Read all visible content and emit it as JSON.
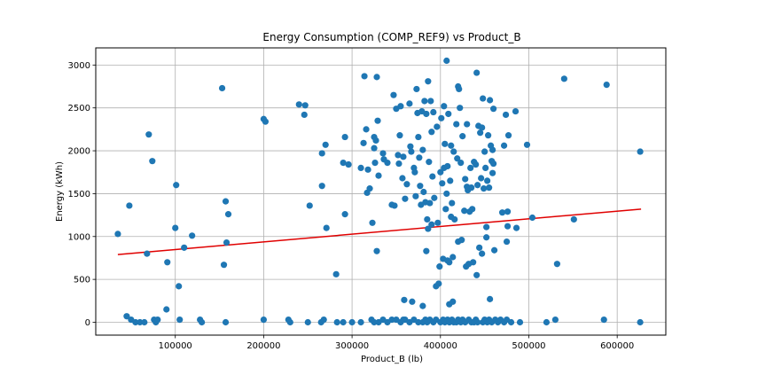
{
  "chart_data": {
    "type": "scatter",
    "title": "Energy Consumption (COMP_REF9) vs Product_B",
    "xlabel": "Product_B (lb)",
    "ylabel": "Energy (kWh)",
    "xlim": [
      10000,
      655000
    ],
    "ylim": [
      -150,
      3200
    ],
    "xticks": [
      100000,
      200000,
      300000,
      400000,
      500000,
      600000
    ],
    "xtick_labels": [
      "100000",
      "200000",
      "300000",
      "400000",
      "500000",
      "600000"
    ],
    "yticks": [
      0,
      500,
      1000,
      1500,
      2000,
      2500,
      3000
    ],
    "ytick_labels": [
      "0",
      "500",
      "1000",
      "1500",
      "2000",
      "2500",
      "3000"
    ],
    "grid": true,
    "point_color": "#1f77b4",
    "trend_color": "#e00000",
    "trendline": {
      "x": [
        35000,
        627000
      ],
      "y": [
        790,
        1320
      ]
    },
    "points": [
      [
        35000,
        1030
      ],
      [
        45000,
        70
      ],
      [
        48000,
        1360
      ],
      [
        50000,
        30
      ],
      [
        55000,
        0
      ],
      [
        60000,
        0
      ],
      [
        65000,
        0
      ],
      [
        68000,
        800
      ],
      [
        70000,
        2190
      ],
      [
        74000,
        1880
      ],
      [
        76000,
        30
      ],
      [
        78000,
        0
      ],
      [
        80000,
        30
      ],
      [
        91000,
        700
      ],
      [
        90000,
        150
      ],
      [
        100000,
        1100
      ],
      [
        101000,
        1600
      ],
      [
        104000,
        420
      ],
      [
        105000,
        30
      ],
      [
        110000,
        870
      ],
      [
        119000,
        1010
      ],
      [
        128000,
        30
      ],
      [
        130000,
        0
      ],
      [
        153000,
        2730
      ],
      [
        155000,
        670
      ],
      [
        157000,
        0
      ],
      [
        157000,
        1410
      ],
      [
        158000,
        930
      ],
      [
        160000,
        1260
      ],
      [
        200000,
        2370
      ],
      [
        202000,
        2340
      ],
      [
        200000,
        30
      ],
      [
        228000,
        30
      ],
      [
        230000,
        0
      ],
      [
        240000,
        2540
      ],
      [
        246000,
        2420
      ],
      [
        247000,
        2530
      ],
      [
        250000,
        0
      ],
      [
        252000,
        1360
      ],
      [
        265000,
        0
      ],
      [
        266000,
        1970
      ],
      [
        266000,
        1590
      ],
      [
        268000,
        30
      ],
      [
        270000,
        2070
      ],
      [
        271000,
        1100
      ],
      [
        282000,
        560
      ],
      [
        283000,
        0
      ],
      [
        290000,
        1860
      ],
      [
        292000,
        1260
      ],
      [
        292000,
        2160
      ],
      [
        296000,
        1840
      ],
      [
        300000,
        0
      ],
      [
        310000,
        1800
      ],
      [
        310000,
        0
      ],
      [
        313000,
        2090
      ],
      [
        314000,
        2870
      ],
      [
        316000,
        2250
      ],
      [
        317000,
        1510
      ],
      [
        318000,
        1780
      ],
      [
        320000,
        1560
      ],
      [
        322000,
        30
      ],
      [
        323000,
        1160
      ],
      [
        325000,
        2160
      ],
      [
        325000,
        2030
      ],
      [
        326000,
        1860
      ],
      [
        327000,
        2120
      ],
      [
        328000,
        830
      ],
      [
        328000,
        2860
      ],
      [
        329000,
        2350
      ],
      [
        330000,
        1710
      ],
      [
        330000,
        0
      ],
      [
        335000,
        1970
      ],
      [
        336000,
        1900
      ],
      [
        340000,
        1860
      ],
      [
        345000,
        1370
      ],
      [
        347000,
        2650
      ],
      [
        348000,
        1360
      ],
      [
        350000,
        2490
      ],
      [
        352000,
        1950
      ],
      [
        353000,
        1850
      ],
      [
        354000,
        2180
      ],
      [
        355000,
        2520
      ],
      [
        357000,
        1680
      ],
      [
        358000,
        1930
      ],
      [
        359000,
        260
      ],
      [
        360000,
        1440
      ],
      [
        362000,
        1610
      ],
      [
        365000,
        2550
      ],
      [
        366000,
        2050
      ],
      [
        367000,
        1990
      ],
      [
        368000,
        240
      ],
      [
        370000,
        1800
      ],
      [
        371000,
        1750
      ],
      [
        372000,
        1470
      ],
      [
        373000,
        2720
      ],
      [
        374000,
        2440
      ],
      [
        375000,
        2160
      ],
      [
        376000,
        1920
      ],
      [
        377000,
        1590
      ],
      [
        378000,
        1370
      ],
      [
        379000,
        2460
      ],
      [
        380000,
        2010
      ],
      [
        380000,
        190
      ],
      [
        381000,
        1520
      ],
      [
        382000,
        2580
      ],
      [
        383000,
        1400
      ],
      [
        384000,
        2430
      ],
      [
        384000,
        830
      ],
      [
        385000,
        1200
      ],
      [
        386000,
        2810
      ],
      [
        386000,
        1090
      ],
      [
        387000,
        1870
      ],
      [
        388000,
        1390
      ],
      [
        389000,
        2580
      ],
      [
        390000,
        2220
      ],
      [
        390000,
        1140
      ],
      [
        391000,
        1700
      ],
      [
        392000,
        2450
      ],
      [
        393000,
        1450
      ],
      [
        395000,
        420
      ],
      [
        396000,
        2280
      ],
      [
        397000,
        1160
      ],
      [
        398000,
        450
      ],
      [
        399000,
        650
      ],
      [
        400000,
        1750
      ],
      [
        401000,
        2380
      ],
      [
        402000,
        1620
      ],
      [
        403000,
        740
      ],
      [
        404000,
        2520
      ],
      [
        404000,
        1800
      ],
      [
        405000,
        2080
      ],
      [
        406000,
        1320
      ],
      [
        407000,
        1500
      ],
      [
        407000,
        3050
      ],
      [
        408000,
        1820
      ],
      [
        408000,
        720
      ],
      [
        409000,
        2430
      ],
      [
        410000,
        700
      ],
      [
        410000,
        210
      ],
      [
        411000,
        1650
      ],
      [
        412000,
        2060
      ],
      [
        412000,
        1230
      ],
      [
        413000,
        1390
      ],
      [
        414000,
        760
      ],
      [
        414000,
        240
      ],
      [
        415000,
        1990
      ],
      [
        416000,
        1200
      ],
      [
        418000,
        2310
      ],
      [
        419000,
        1910
      ],
      [
        420000,
        2750
      ],
      [
        420000,
        940
      ],
      [
        421000,
        2720
      ],
      [
        422000,
        2500
      ],
      [
        423000,
        1860
      ],
      [
        424000,
        960
      ],
      [
        425000,
        2170
      ],
      [
        427000,
        1300
      ],
      [
        428000,
        1670
      ],
      [
        429000,
        650
      ],
      [
        430000,
        1580
      ],
      [
        430000,
        2310
      ],
      [
        431000,
        1540
      ],
      [
        432000,
        680
      ],
      [
        433000,
        1290
      ],
      [
        434000,
        1800
      ],
      [
        435000,
        1570
      ],
      [
        436000,
        1320
      ],
      [
        437000,
        700
      ],
      [
        438000,
        1870
      ],
      [
        440000,
        1840
      ],
      [
        441000,
        2910
      ],
      [
        441000,
        550
      ],
      [
        442000,
        1600
      ],
      [
        443000,
        2290
      ],
      [
        444000,
        870
      ],
      [
        445000,
        2210
      ],
      [
        446000,
        1680
      ],
      [
        447000,
        2270
      ],
      [
        447000,
        800
      ],
      [
        448000,
        2610
      ],
      [
        449000,
        1560
      ],
      [
        450000,
        1990
      ],
      [
        451000,
        1800
      ],
      [
        452000,
        1110
      ],
      [
        452000,
        990
      ],
      [
        453000,
        1650
      ],
      [
        454000,
        2180
      ],
      [
        455000,
        1570
      ],
      [
        456000,
        270
      ],
      [
        456000,
        2590
      ],
      [
        457000,
        2060
      ],
      [
        458000,
        1880
      ],
      [
        459000,
        1740
      ],
      [
        459000,
        2010
      ],
      [
        460000,
        2490
      ],
      [
        460000,
        1850
      ],
      [
        461000,
        840
      ],
      [
        470000,
        1280
      ],
      [
        472000,
        2060
      ],
      [
        474000,
        2420
      ],
      [
        475000,
        940
      ],
      [
        476000,
        1120
      ],
      [
        476000,
        1290
      ],
      [
        477000,
        2180
      ],
      [
        480000,
        0
      ],
      [
        485000,
        2460
      ],
      [
        486000,
        1100
      ],
      [
        498000,
        2070
      ],
      [
        504000,
        1220
      ],
      [
        532000,
        680
      ],
      [
        540000,
        2840
      ],
      [
        551000,
        1200
      ],
      [
        588000,
        2770
      ],
      [
        626000,
        1990
      ],
      [
        626000,
        0
      ],
      [
        340000,
        0
      ],
      [
        345000,
        30
      ],
      [
        355000,
        0
      ],
      [
        360000,
        30
      ],
      [
        365000,
        0
      ],
      [
        370000,
        30
      ],
      [
        375000,
        0
      ],
      [
        380000,
        0
      ],
      [
        383000,
        30
      ],
      [
        385000,
        0
      ],
      [
        388000,
        30
      ],
      [
        392000,
        0
      ],
      [
        395000,
        30
      ],
      [
        400000,
        0
      ],
      [
        403000,
        30
      ],
      [
        405000,
        0
      ],
      [
        408000,
        30
      ],
      [
        410000,
        0
      ],
      [
        413000,
        30
      ],
      [
        415000,
        0
      ],
      [
        418000,
        0
      ],
      [
        420000,
        30
      ],
      [
        423000,
        0
      ],
      [
        425000,
        30
      ],
      [
        428000,
        0
      ],
      [
        432000,
        30
      ],
      [
        435000,
        0
      ],
      [
        438000,
        0
      ],
      [
        440000,
        30
      ],
      [
        442000,
        0
      ],
      [
        448000,
        0
      ],
      [
        450000,
        30
      ],
      [
        453000,
        0
      ],
      [
        455000,
        30
      ],
      [
        458000,
        0
      ],
      [
        462000,
        30
      ],
      [
        465000,
        0
      ],
      [
        468000,
        30
      ],
      [
        472000,
        0
      ],
      [
        475000,
        30
      ],
      [
        490000,
        0
      ],
      [
        520000,
        0
      ],
      [
        530000,
        30
      ],
      [
        585000,
        30
      ],
      [
        290000,
        0
      ],
      [
        325000,
        0
      ],
      [
        335000,
        30
      ],
      [
        350000,
        30
      ],
      [
        358000,
        30
      ]
    ]
  }
}
